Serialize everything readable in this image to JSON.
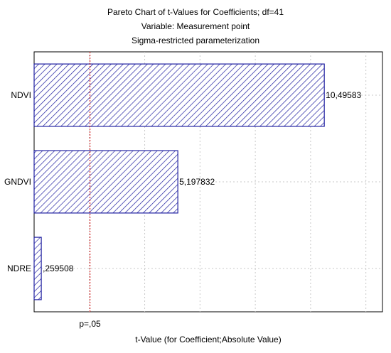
{
  "chart_data": {
    "type": "bar",
    "orientation": "horizontal",
    "title": [
      "Pareto Chart of t-Values for Coefficients; df=41",
      "Variable: Measurement point",
      "Sigma-restricted parameterization"
    ],
    "categories": [
      "NDVI",
      "GNDVI",
      "NDRE"
    ],
    "values": [
      10.49583,
      5.197832,
      0.259508
    ],
    "value_labels": [
      "10,49583",
      "5,197832",
      ",259508"
    ],
    "xlabel": "t-Value (for Coefficient;Absolute Value)",
    "xlim": [
      0,
      12.6
    ],
    "critical_value": 2.02,
    "critical_label": "p=,05",
    "bar_color": "#1f1fa0",
    "critical_color": "#d11a1a",
    "grid": true
  }
}
